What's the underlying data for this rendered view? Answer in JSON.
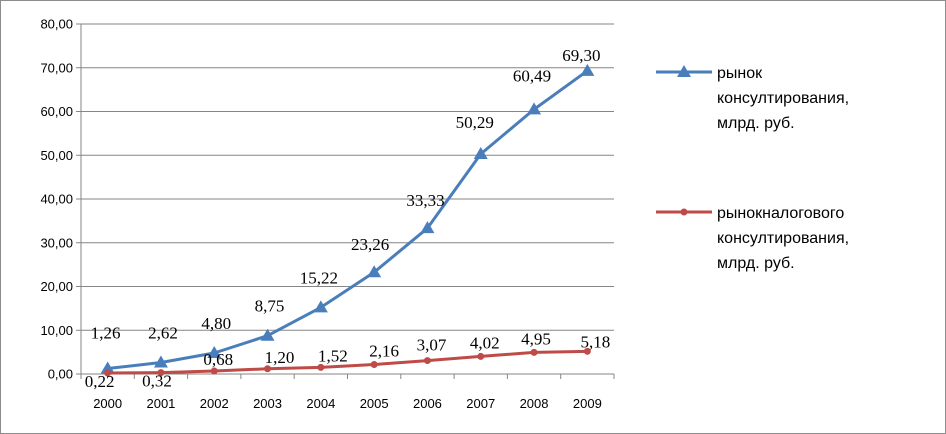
{
  "chart_data": {
    "type": "line",
    "title": "",
    "xlabel": "",
    "ylabel": "",
    "x": [
      "2000",
      "2001",
      "2002",
      "2003",
      "2004",
      "2005",
      "2006",
      "2007",
      "2008",
      "2009"
    ],
    "ylim": [
      0,
      80
    ],
    "y_ticks": [
      "0,00",
      "10,00",
      "20,00",
      "30,00",
      "40,00",
      "50,00",
      "60,00",
      "70,00",
      "80,00"
    ],
    "grid": true,
    "legend_position": "right",
    "series": [
      {
        "name": "рынок консултирования, млрд. руб.",
        "legend_lines": [
          "рынок",
          "консултирования,",
          "млрд. руб."
        ],
        "values": [
          1.26,
          2.62,
          4.8,
          8.75,
          15.22,
          23.26,
          33.33,
          50.29,
          60.49,
          69.3
        ],
        "labels": [
          "1,26",
          "2,62",
          "4,80",
          "8,75",
          "15,22",
          "23,26",
          "33,33",
          "50,29",
          "60,49",
          "69,30"
        ],
        "color": "#4a7ebb",
        "marker": "triangle"
      },
      {
        "name": "рынокналогового консултирования, млрд. руб.",
        "legend_lines": [
          "рынокналогового",
          "консултирования,",
          "млрд. руб."
        ],
        "values": [
          0.22,
          0.32,
          0.68,
          1.2,
          1.52,
          2.16,
          3.07,
          4.02,
          4.95,
          5.18
        ],
        "labels": [
          "0,22",
          "0,32",
          "0,68",
          "1,20",
          "1,52",
          "2,16",
          "3,07",
          "4,02",
          "4,95",
          "5,18"
        ],
        "color": "#be4b48",
        "marker": "circle"
      }
    ]
  }
}
